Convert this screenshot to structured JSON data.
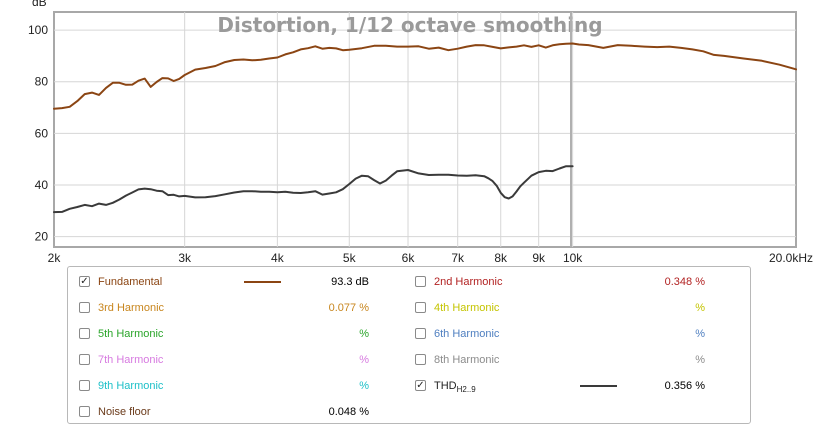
{
  "chart_data": {
    "type": "line",
    "title": "Distortion, 1/12 octave smoothing",
    "ylabel": "dB",
    "xlabel": "",
    "xscale": "log",
    "xlim": [
      2000,
      20000
    ],
    "ylim": [
      16,
      107
    ],
    "grid": true,
    "xticks": [
      {
        "v": 2000,
        "label": "2k"
      },
      {
        "v": 3000,
        "label": "3k"
      },
      {
        "v": 4000,
        "label": "4k"
      },
      {
        "v": 5000,
        "label": "5k"
      },
      {
        "v": 6000,
        "label": "6k"
      },
      {
        "v": 7000,
        "label": "7k"
      },
      {
        "v": 8000,
        "label": "8k"
      },
      {
        "v": 9000,
        "label": "9k"
      },
      {
        "v": 10000,
        "label": "10k"
      },
      {
        "v": 20000,
        "label": "20.0kHz"
      }
    ],
    "yticks": [
      {
        "v": 20,
        "label": "20"
      },
      {
        "v": 40,
        "label": "40"
      },
      {
        "v": 60,
        "label": "60"
      },
      {
        "v": 80,
        "label": "80"
      },
      {
        "v": 100,
        "label": "100"
      }
    ],
    "series": [
      {
        "name": "Fundamental",
        "color": "#8b4513",
        "x": [
          2000,
          2050,
          2100,
          2150,
          2200,
          2250,
          2300,
          2350,
          2400,
          2450,
          2500,
          2550,
          2600,
          2650,
          2700,
          2750,
          2800,
          2850,
          2900,
          2950,
          3000,
          3100,
          3200,
          3300,
          3400,
          3500,
          3600,
          3700,
          3800,
          3900,
          4000,
          4100,
          4200,
          4300,
          4400,
          4500,
          4600,
          4700,
          4800,
          4900,
          5000,
          5200,
          5400,
          5600,
          5800,
          6000,
          6200,
          6400,
          6600,
          6800,
          7000,
          7200,
          7400,
          7600,
          7800,
          8000,
          8200,
          8400,
          8600,
          8800,
          9000,
          9200,
          9400,
          9600,
          9800,
          10000,
          10200,
          10500,
          11000,
          11500,
          12000,
          12500,
          13000,
          13500,
          14000,
          14500,
          15000,
          15500,
          16000,
          17000,
          18000,
          19000,
          20000
        ],
        "values": [
          69.5,
          69.8,
          70.3,
          72.5,
          75.2,
          75.8,
          74.9,
          77.6,
          79.6,
          79.6,
          78.8,
          78.9,
          80.4,
          81.2,
          78.0,
          79.9,
          81.4,
          81.3,
          80.3,
          81.1,
          82.6,
          84.7,
          85.3,
          86.1,
          87.6,
          88.4,
          88.6,
          88.3,
          88.5,
          89.0,
          89.4,
          90.6,
          91.4,
          92.5,
          93.0,
          93.7,
          92.8,
          93.1,
          92.9,
          92.2,
          92.4,
          93.0,
          93.9,
          93.9,
          93.6,
          93.6,
          93.7,
          92.8,
          93.2,
          92.2,
          92.8,
          93.6,
          94.2,
          94.1,
          93.5,
          92.9,
          93.3,
          93.6,
          94.1,
          93.5,
          94.1,
          93.2,
          94.1,
          94.5,
          94.7,
          94.8,
          94.4,
          94.2,
          93.1,
          94.2,
          93.9,
          93.6,
          93.4,
          93.6,
          93.1,
          92.5,
          91.8,
          90.4,
          90.0,
          89.0,
          88.1,
          86.6,
          84.8
        ]
      },
      {
        "name": "THD",
        "color": "#3a3a3a",
        "x": [
          2000,
          2050,
          2100,
          2150,
          2200,
          2250,
          2300,
          2350,
          2400,
          2450,
          2500,
          2550,
          2600,
          2650,
          2700,
          2750,
          2800,
          2850,
          2900,
          2950,
          3000,
          3100,
          3200,
          3300,
          3400,
          3500,
          3600,
          3700,
          3800,
          3900,
          4000,
          4100,
          4200,
          4300,
          4400,
          4500,
          4600,
          4700,
          4800,
          4900,
          5000,
          5100,
          5200,
          5300,
          5400,
          5500,
          5600,
          5700,
          5800,
          6000,
          6200,
          6400,
          6600,
          6800,
          7000,
          7200,
          7400,
          7600,
          7700,
          7800,
          7900,
          8000,
          8100,
          8200,
          8300,
          8400,
          8500,
          8600,
          8800,
          9000,
          9200,
          9400,
          9600,
          9800,
          10000
        ],
        "values": [
          29.5,
          29.6,
          30.8,
          31.5,
          32.3,
          31.8,
          32.8,
          32.3,
          33.1,
          34.4,
          35.9,
          37.1,
          38.3,
          38.6,
          38.4,
          37.8,
          37.6,
          36.1,
          36.2,
          35.6,
          35.8,
          35.2,
          35.3,
          35.7,
          36.4,
          37.1,
          37.6,
          37.6,
          37.4,
          37.4,
          37.2,
          37.4,
          37.0,
          36.9,
          37.2,
          37.6,
          36.3,
          36.7,
          37.2,
          38.4,
          40.4,
          42.5,
          43.6,
          43.4,
          41.9,
          40.6,
          41.7,
          43.6,
          45.3,
          45.8,
          44.5,
          43.9,
          44.0,
          44.0,
          43.7,
          43.6,
          43.8,
          43.4,
          42.6,
          41.5,
          39.7,
          37.0,
          35.3,
          34.8,
          35.6,
          37.5,
          39.5,
          40.9,
          43.6,
          45.0,
          45.5,
          45.4,
          46.4,
          47.3,
          47.3
        ]
      }
    ]
  },
  "legend": {
    "fundamental": {
      "label": "Fundamental",
      "value": "93.3 dB",
      "checked": "✓",
      "color": "#8b4513"
    },
    "h2": {
      "label": "2nd Harmonic",
      "value": "0.348 %",
      "color": "#b22222"
    },
    "h3": {
      "label": "3rd Harmonic",
      "value": "0.077 %",
      "color": "#c8861e"
    },
    "h4": {
      "label": "4th Harmonic",
      "value": "%",
      "color": "#c4c400"
    },
    "h5": {
      "label": "5th Harmonic",
      "value": "%",
      "color": "#2aa52a"
    },
    "h6": {
      "label": "6th Harmonic",
      "value": "%",
      "color": "#4f7fc0"
    },
    "h7": {
      "label": "7th Harmonic",
      "value": "%",
      "color": "#d77be0"
    },
    "h8": {
      "label": "8th Harmonic",
      "value": "%",
      "color": "#8c8c8c"
    },
    "h9": {
      "label": "9th Harmonic",
      "value": "%",
      "color": "#1ec0c8"
    },
    "thd": {
      "label": "THD",
      "sub": "H2..9",
      "value": "0.356 %",
      "checked": "✓",
      "color": "#3a3a3a"
    },
    "noise": {
      "label": "Noise floor",
      "value": "0.048 %",
      "color": "#6a3a1a"
    }
  },
  "colors": {
    "plot_border": "#a8a8a8",
    "grid": "#d6d6d6",
    "cursor_line": "#b0b0b0"
  }
}
